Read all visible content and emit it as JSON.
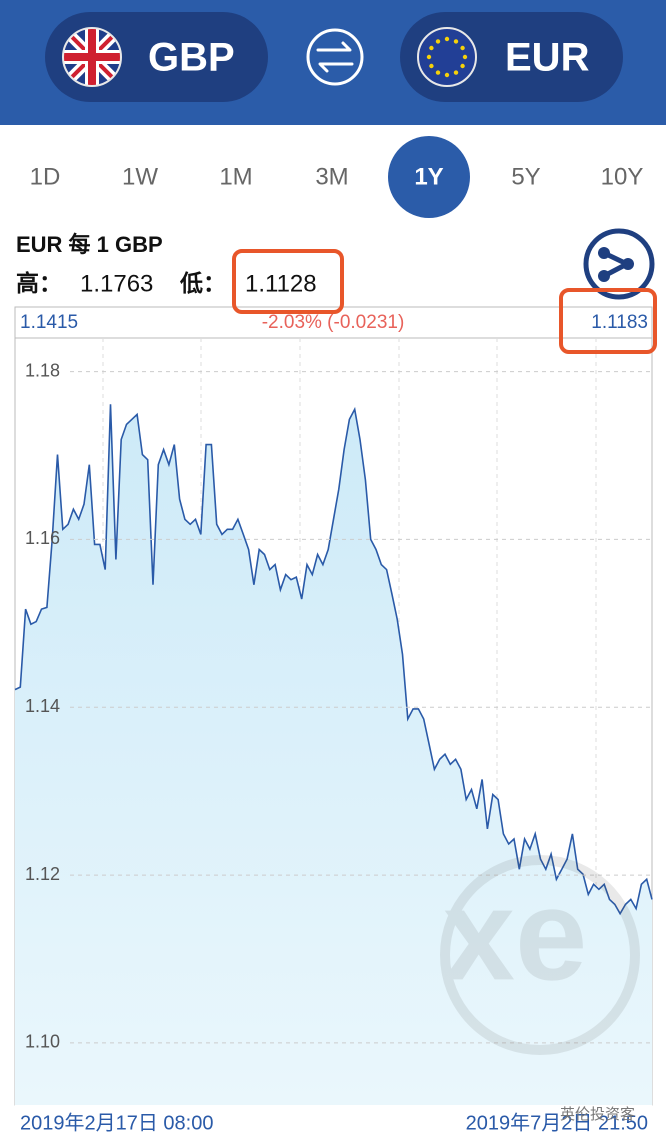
{
  "header": {
    "from": "GBP",
    "to": "EUR"
  },
  "tabs": {
    "items": [
      "1D",
      "1W",
      "1M",
      "3M",
      "1Y",
      "5Y",
      "10Y"
    ],
    "selected": 4
  },
  "summary": {
    "pair": "EUR 每 1 GBP",
    "high_label": "高：",
    "high": 1.1763,
    "low_label": "低：",
    "low": 1.1128
  },
  "chart_data": {
    "type": "line",
    "open_value": 1.1415,
    "change": "-2.03% (-0.0231)",
    "close_value": 1.1183,
    "start_label": "2019年2月17日 08:00",
    "end_label": "2019年7月2日 21:50",
    "values": [
      1.1421,
      1.1424,
      1.1517,
      1.1499,
      1.1502,
      1.1517,
      1.1519,
      1.16,
      1.1701,
      1.1612,
      1.1618,
      1.1636,
      1.1624,
      1.1642,
      1.1689,
      1.1594,
      1.1594,
      1.1564,
      1.1761,
      1.1576,
      1.1719,
      1.1737,
      1.1743,
      1.1749,
      1.1701,
      1.1695,
      1.1546,
      1.1689,
      1.1707,
      1.1689,
      1.1713,
      1.1648,
      1.1624,
      1.1618,
      1.1624,
      1.1606,
      1.1713,
      1.1713,
      1.1618,
      1.1606,
      1.1612,
      1.1612,
      1.1624,
      1.1606,
      1.1588,
      1.1546,
      1.1588,
      1.1582,
      1.1564,
      1.157,
      1.154,
      1.1558,
      1.1552,
      1.1555,
      1.1529,
      1.157,
      1.1558,
      1.1582,
      1.157,
      1.1588,
      1.1624,
      1.166,
      1.1707,
      1.1743,
      1.1755,
      1.1719,
      1.1671,
      1.16,
      1.1588,
      1.157,
      1.1564,
      1.1535,
      1.1505,
      1.1463,
      1.1386,
      1.1398,
      1.1398,
      1.1386,
      1.1356,
      1.1326,
      1.1338,
      1.1344,
      1.1332,
      1.1338,
      1.1326,
      1.129,
      1.1302,
      1.1279,
      1.1314,
      1.1255,
      1.1296,
      1.129,
      1.1249,
      1.1237,
      1.1243,
      1.1207,
      1.1243,
      1.1231,
      1.1249,
      1.1219,
      1.1207,
      1.1225,
      1.1195,
      1.1207,
      1.1219,
      1.1249,
      1.1207,
      1.1201,
      1.1177,
      1.1189,
      1.1183,
      1.1189,
      1.1171,
      1.1165,
      1.1154,
      1.1165,
      1.1171,
      1.116,
      1.1189,
      1.1195,
      1.1171
    ],
    "color": "#2a5aa8",
    "fill": "#d6effa",
    "ylim": [
      1.0926,
      1.184
    ],
    "yticks": [
      {
        "value": 1.1,
        "label": "1.10"
      },
      1.12,
      1.14,
      1.16,
      1.18
    ],
    "grid": true
  },
  "watermark": "英伦投资客"
}
